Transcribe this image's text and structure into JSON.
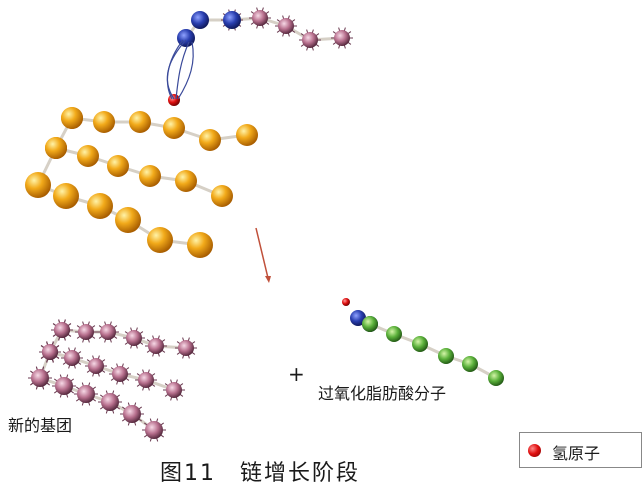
{
  "labels": {
    "new_group": "新的基团",
    "plus": "+",
    "peroxide_molecule": "过氧化脂肪酸分子",
    "caption": "图11　链增长阶段"
  },
  "legend": {
    "hydrogen_atom": "氢原子"
  },
  "colors": {
    "fatty_acid_chain": "#f0a818",
    "radical_atom": "#b86b8a",
    "oxygen_atom": "#2a3fa0",
    "hydrogen_atom": "#e01010",
    "product_chain": "#5ab03a",
    "bond": "#d8d2c8",
    "arrow": "#c0503a"
  }
}
